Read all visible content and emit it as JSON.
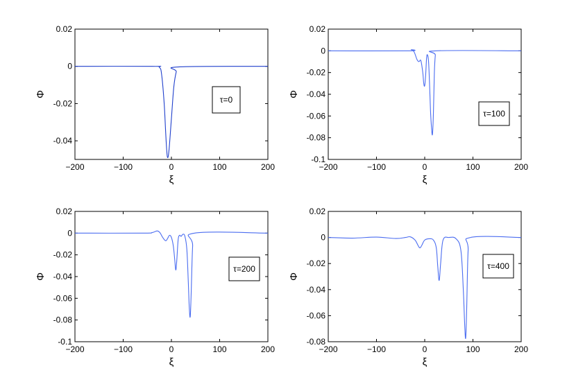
{
  "chart_data": [
    {
      "type": "line",
      "xlabel": "ξ",
      "ylabel": "Φ",
      "xlim": [
        -200,
        200
      ],
      "ylim": [
        -0.05,
        0.02
      ],
      "xticks": [
        "−200",
        "−100",
        "0",
        "100",
        "200"
      ],
      "yticks": [
        "0.02",
        "0",
        "-0.02",
        "-0.04"
      ],
      "ytick_values": [
        0.02,
        0,
        -0.02,
        -0.04
      ],
      "annotation": "τ=0",
      "series_color": "#1f3fcc",
      "series": [
        {
          "x": [
            -200,
            -40,
            -25,
            -20,
            -15,
            -12,
            -10,
            -8,
            -5,
            0,
            5,
            10,
            15,
            200
          ],
          "y": [
            0,
            0,
            -0.0005,
            -0.005,
            -0.02,
            -0.035,
            -0.044,
            -0.049,
            -0.045,
            -0.028,
            -0.011,
            -0.003,
            -0.0003,
            0
          ]
        }
      ],
      "grid": false
    },
    {
      "type": "line",
      "xlabel": "ξ",
      "ylabel": "Φ",
      "xlim": [
        -200,
        200
      ],
      "ylim": [
        -0.1,
        0.02
      ],
      "xticks": [
        "−200",
        "−100",
        "0",
        "100",
        "200"
      ],
      "yticks": [
        "0.02",
        "0",
        "-0.02",
        "-0.04",
        "-0.06",
        "-0.08",
        "-0.1"
      ],
      "ytick_values": [
        0.02,
        0,
        -0.02,
        -0.04,
        -0.06,
        -0.08,
        -0.1
      ],
      "annotation": "τ=100",
      "series_color": "#4a6cf0",
      "series": [
        {
          "x": [
            -200,
            -35,
            -28,
            -22,
            -16,
            -12,
            -8,
            -4,
            -2,
            0,
            2,
            4,
            6,
            8,
            10,
            12,
            14,
            16,
            18,
            20,
            22,
            24,
            200
          ],
          "y": [
            0,
            0,
            0.001,
            -0.001,
            -0.008,
            -0.01,
            -0.009,
            -0.02,
            -0.03,
            -0.032,
            -0.022,
            -0.006,
            -0.004,
            -0.01,
            -0.03,
            -0.055,
            -0.07,
            -0.077,
            -0.058,
            -0.02,
            -0.004,
            0,
            0
          ]
        }
      ],
      "grid": false
    },
    {
      "type": "line",
      "xlabel": "ξ",
      "ylabel": "Φ",
      "xlim": [
        -200,
        200
      ],
      "ylim": [
        -0.1,
        0.02
      ],
      "xticks": [
        "−200",
        "−100",
        "0",
        "100",
        "200"
      ],
      "yticks": [
        "0.02",
        "0",
        "-0.02",
        "-0.04",
        "-0.06",
        "-0.08",
        "-0.1"
      ],
      "ytick_values": [
        0.02,
        0,
        -0.02,
        -0.04,
        -0.06,
        -0.08,
        -0.1
      ],
      "annotation": "τ=200",
      "series_color": "#4a6cf0",
      "series": [
        {
          "x": [
            -200,
            -60,
            -40,
            -30,
            -24,
            -18,
            -12,
            -8,
            -4,
            0,
            4,
            7,
            9,
            11,
            14,
            17,
            20,
            24,
            28,
            32,
            35,
            37,
            39,
            41,
            44,
            48,
            200
          ],
          "y": [
            0,
            0,
            0.0005,
            0.002,
            0.0005,
            -0.004,
            -0.007,
            -0.005,
            -0.002,
            -0.004,
            -0.012,
            -0.025,
            -0.034,
            -0.026,
            -0.006,
            -0.002,
            -0.003,
            -0.001,
            -0.003,
            -0.015,
            -0.045,
            -0.068,
            -0.077,
            -0.055,
            -0.012,
            0,
            0
          ]
        }
      ],
      "grid": false
    },
    {
      "type": "line",
      "xlabel": "ξ",
      "ylabel": "Φ",
      "xlim": [
        -200,
        200
      ],
      "ylim": [
        -0.08,
        0.02
      ],
      "xticks": [
        "−200",
        "−100",
        "0",
        "100",
        "200"
      ],
      "yticks": [
        "0.02",
        "0",
        "-0.02",
        "-0.04",
        "-0.06",
        "-0.08"
      ],
      "ytick_values": [
        0.02,
        0,
        -0.02,
        -0.04,
        -0.06,
        -0.08
      ],
      "annotation": "τ=400",
      "series_color": "#4a6cf0",
      "series": [
        {
          "x": [
            -200,
            -150,
            -100,
            -60,
            -40,
            -30,
            -20,
            -14,
            -10,
            -6,
            0,
            10,
            18,
            24,
            27,
            30,
            33,
            38,
            50,
            65,
            75,
            80,
            83,
            85,
            87,
            90,
            95,
            200
          ],
          "y": [
            0,
            -0.0005,
            0.0003,
            -0.0008,
            0,
            0.0005,
            -0.002,
            -0.006,
            -0.008,
            -0.006,
            -0.002,
            -0.001,
            -0.002,
            -0.008,
            -0.022,
            -0.033,
            -0.02,
            -0.002,
            0,
            -0.001,
            -0.01,
            -0.04,
            -0.068,
            -0.077,
            -0.055,
            -0.01,
            0,
            0
          ]
        }
      ],
      "grid": false
    }
  ]
}
